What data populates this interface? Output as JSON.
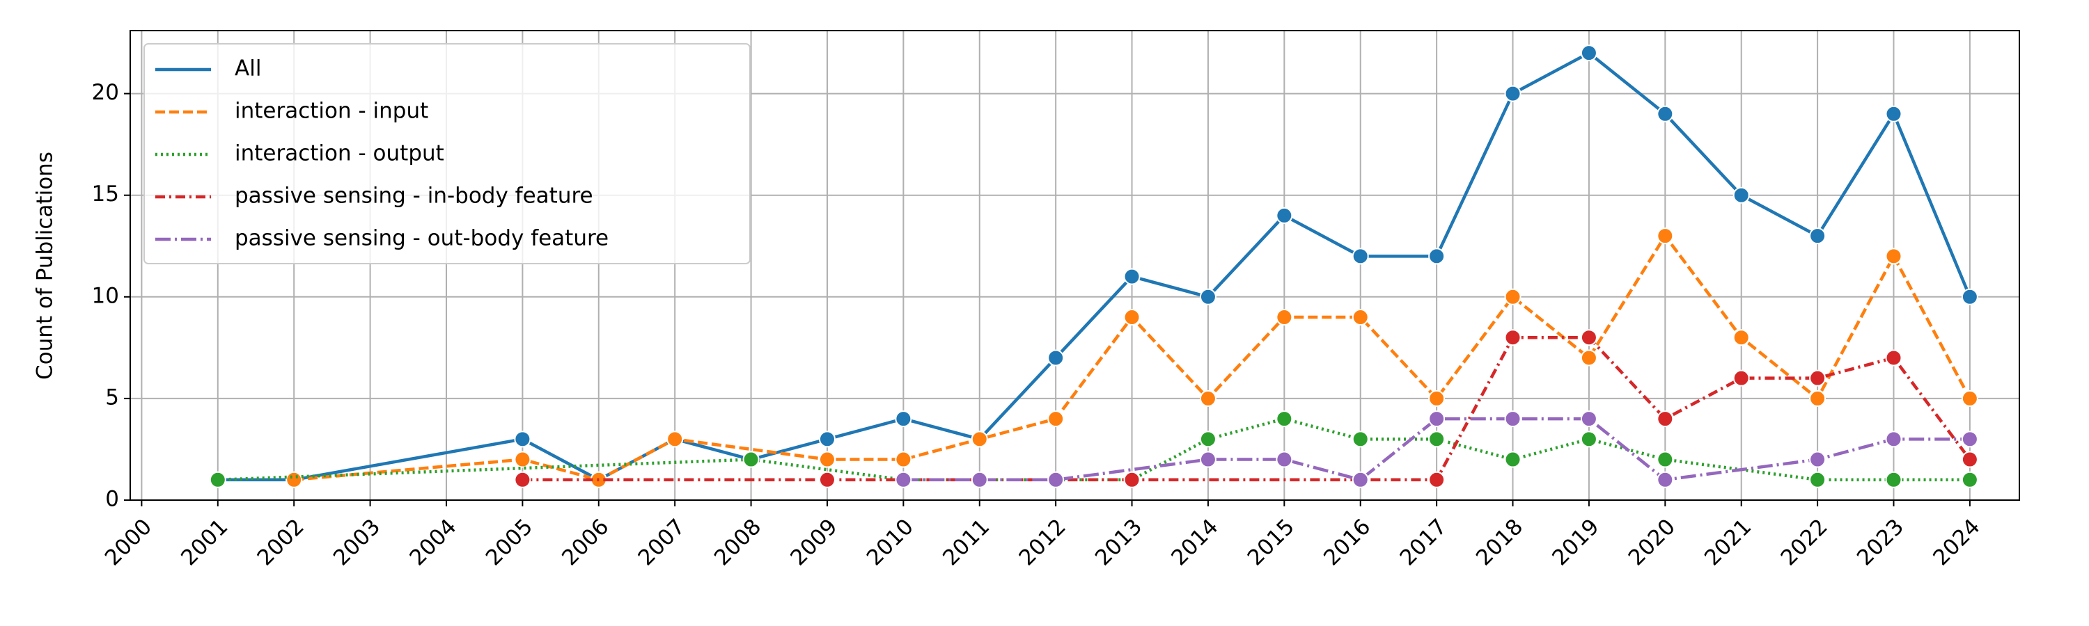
{
  "chart_data": {
    "type": "line",
    "y_label": "Count of Publications",
    "xlim": [
      1999.85,
      2024.65
    ],
    "ylim": [
      0,
      23.1
    ],
    "xticks": [
      2000,
      2001,
      2002,
      2003,
      2004,
      2005,
      2006,
      2007,
      2008,
      2009,
      2010,
      2011,
      2012,
      2013,
      2014,
      2015,
      2016,
      2017,
      2018,
      2019,
      2020,
      2021,
      2022,
      2023,
      2024
    ],
    "yticks": [
      0,
      5,
      10,
      15,
      20
    ],
    "grid": true,
    "legend": "upper left",
    "series": [
      {
        "name": "All",
        "color": "#1f77b4",
        "linestyle": "solid",
        "x": [
          2001,
          2002,
          2005,
          2006,
          2007,
          2008,
          2009,
          2010,
          2011,
          2012,
          2013,
          2014,
          2015,
          2016,
          2017,
          2018,
          2019,
          2020,
          2021,
          2022,
          2023,
          2024
        ],
        "values": [
          1,
          1,
          3,
          1,
          3,
          2,
          3,
          4,
          3,
          7,
          11,
          10,
          14,
          12,
          12,
          20,
          22,
          19,
          15,
          13,
          19,
          10
        ]
      },
      {
        "name": "interaction - input",
        "color": "#ff7f0e",
        "linestyle": "dashed",
        "x": [
          2002,
          2005,
          2006,
          2007,
          2009,
          2010,
          2011,
          2012,
          2013,
          2014,
          2015,
          2016,
          2017,
          2018,
          2019,
          2020,
          2021,
          2022,
          2023,
          2024
        ],
        "values": [
          1,
          2,
          1,
          3,
          2,
          2,
          3,
          4,
          9,
          5,
          9,
          9,
          5,
          10,
          7,
          13,
          8,
          5,
          12,
          5
        ]
      },
      {
        "name": "interaction - output",
        "color": "#2ca02c",
        "linestyle": "dotted",
        "x": [
          2001,
          2008,
          2010,
          2012,
          2013,
          2014,
          2015,
          2016,
          2017,
          2018,
          2019,
          2020,
          2022,
          2023,
          2024
        ],
        "values": [
          1,
          2,
          1,
          1,
          1,
          3,
          4,
          3,
          3,
          2,
          3,
          2,
          1,
          1,
          1
        ]
      },
      {
        "name": "passive sensing - in-body feature",
        "color": "#d62728",
        "linestyle": "dashdot",
        "x": [
          2005,
          2009,
          2013,
          2017,
          2018,
          2019,
          2020,
          2021,
          2022,
          2023,
          2024
        ],
        "values": [
          1,
          1,
          1,
          1,
          8,
          8,
          4,
          6,
          6,
          7,
          2
        ]
      },
      {
        "name": "passive sensing - out-body feature",
        "color": "#9467bd",
        "linestyle": "longdashdot",
        "x": [
          2010,
          2011,
          2012,
          2014,
          2015,
          2016,
          2017,
          2018,
          2019,
          2020,
          2022,
          2023,
          2024
        ],
        "values": [
          1,
          1,
          1,
          2,
          2,
          1,
          4,
          4,
          4,
          1,
          2,
          3,
          3
        ]
      }
    ]
  }
}
